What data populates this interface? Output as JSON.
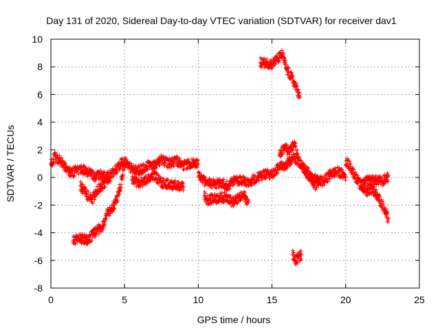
{
  "chart_data": {
    "type": "scatter",
    "title": "Day 131 of 2020, Sidereal Day-to-day VTEC variation (SDTVAR) for receiver dav1",
    "xlabel": "GPS time / hours",
    "ylabel": "SDTVAR / TECUs",
    "xlim": [
      0,
      25
    ],
    "ylim": [
      -8,
      10
    ],
    "x_ticks": [
      "0",
      "5",
      "10",
      "15",
      "20",
      "25"
    ],
    "y_ticks": [
      "-8",
      "-6",
      "-4",
      "-2",
      "0",
      "2",
      "4",
      "6",
      "8",
      "10"
    ],
    "grid": true,
    "marker": "+",
    "series": [
      {
        "name": "SDTVAR",
        "color": "#ff0000",
        "segments": [
          {
            "x": [
              0,
              0.3,
              0.6,
              1.0,
              1.4,
              1.8,
              2.2,
              2.6,
              3.0,
              3.4,
              3.8,
              4.2,
              4.6,
              5.0,
              5.5,
              6.0,
              6.5,
              7.0,
              7.5,
              8.0,
              8.5,
              9.0,
              9.5,
              10.0
            ],
            "y": [
              1.0,
              1.5,
              1.2,
              0.8,
              0.3,
              0.6,
              0.5,
              0.4,
              0.0,
              0.2,
              0.0,
              0.3,
              0.8,
              1.2,
              0.6,
              0.5,
              0.8,
              0.9,
              1.3,
              1.0,
              1.2,
              0.9,
              1.0,
              1.0
            ]
          },
          {
            "x": [
              1.5,
              2.0,
              2.5,
              3.0,
              3.5,
              3.8,
              4.0,
              4.3,
              4.6,
              5.0
            ],
            "y": [
              -4.6,
              -4.4,
              -4.5,
              -4.0,
              -3.5,
              -2.6,
              -2.4,
              -2.0,
              -1.2,
              0.8
            ]
          },
          {
            "x": [
              2.0,
              2.4,
              2.8,
              3.2,
              3.6,
              4.0
            ],
            "y": [
              -0.6,
              -1.2,
              -1.6,
              -0.9,
              -0.4,
              -0.2
            ]
          },
          {
            "x": [
              5.5,
              6.0,
              6.5,
              7.0,
              7.5,
              8.0,
              8.5,
              9.0
            ],
            "y": [
              -0.2,
              -0.4,
              -0.2,
              0.2,
              -0.4,
              -0.5,
              -0.6,
              -0.7
            ]
          },
          {
            "x": [
              10.0,
              10.5,
              11.0,
              11.5,
              12.0,
              12.5,
              13.0,
              13.5,
              14.0,
              14.5,
              15.0,
              15.5,
              16.0,
              16.5,
              17.0,
              17.5,
              18.0,
              18.5,
              19.0,
              19.5,
              20.0
            ],
            "y": [
              0.1,
              -0.3,
              -0.5,
              -0.4,
              -0.6,
              -0.2,
              -0.2,
              -0.3,
              0.0,
              0.2,
              0.3,
              0.7,
              1.0,
              1.4,
              1.0,
              0.0,
              -0.2,
              -0.3,
              0.3,
              0.4,
              0.1
            ]
          },
          {
            "x": [
              10.4,
              10.6,
              12.0,
              12.3,
              13.1,
              13.4
            ],
            "y": [
              -1.3,
              -1.6,
              -1.4,
              -1.8,
              -1.3,
              -1.8
            ]
          },
          {
            "x": [
              14.2,
              14.6,
              15.0,
              15.4,
              15.7,
              16.0,
              16.3,
              16.6,
              16.9
            ],
            "y": [
              8.3,
              8.3,
              8.2,
              8.6,
              8.9,
              7.8,
              7.3,
              6.6,
              5.8
            ]
          },
          {
            "x": [
              15.5,
              15.9,
              16.2,
              16.5,
              16.8
            ],
            "y": [
              1.6,
              2.2,
              1.8,
              2.5,
              1.5
            ]
          },
          {
            "x": [
              16.4,
              16.6,
              16.8,
              17.0
            ],
            "y": [
              -5.6,
              -6.0,
              -5.8,
              -5.6
            ]
          },
          {
            "x": [
              17.0,
              17.3,
              17.6,
              17.9,
              18.2
            ],
            "y": [
              0.8,
              0.6,
              0.2,
              -0.6,
              -0.2
            ]
          },
          {
            "x": [
              20.0,
              20.3,
              20.6,
              21.0,
              21.4,
              21.8,
              22.2,
              22.5,
              22.7,
              22.9
            ],
            "y": [
              1.2,
              0.8,
              0.2,
              -0.6,
              -1.0,
              -0.8,
              -1.4,
              -2.0,
              -2.6,
              -3.0
            ]
          },
          {
            "x": [
              21.0,
              21.5,
              22.0,
              22.5,
              22.9
            ],
            "y": [
              -0.6,
              -0.2,
              -0.2,
              -0.3,
              0.1
            ]
          }
        ]
      }
    ]
  }
}
